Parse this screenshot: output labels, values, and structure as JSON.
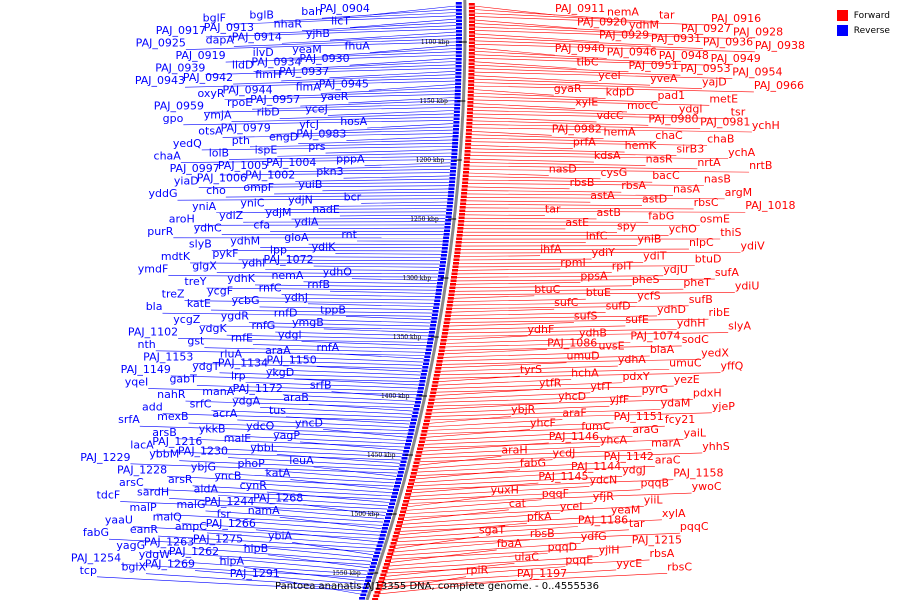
{
  "caption": "Pantoea ananatis AJ13355 DNA, complete genome. - 0..4555536",
  "legend": [
    {
      "label": "Forward",
      "color": "#ff0000"
    },
    {
      "label": "Reverse",
      "color": "#0000ff"
    }
  ],
  "scale_ticks": [
    "1100 kbp",
    "1150 kbp",
    "1200 kbp",
    "1250 kbp",
    "1300 kbp",
    "1350 kbp",
    "1400 kbp",
    "1450 kbp",
    "1500 kbp",
    "1550 kbp"
  ],
  "reverse_genes": [
    "PAJ_0904",
    "bah",
    "bglB",
    "bglF",
    "licT",
    "nhaR",
    "PAJ_0913",
    "PAJ_0917",
    "yjhB",
    "PAJ_0914",
    "dapA",
    "PAJ_0925",
    "fhuA",
    "yeaM",
    "ilvD",
    "PAJ_0919",
    "PAJ_0930",
    "PAJ_0934",
    "lldD",
    "PAJ_0939",
    "PAJ_0937",
    "fimH",
    "PAJ_0942",
    "PAJ_0943",
    "PAJ_0945",
    "fimA",
    "PAJ_0944",
    "oxyR",
    "yaeR",
    "PAJ_0957",
    "rpoE",
    "PAJ_0959",
    "yceJ",
    "ribD",
    "ymjA",
    "gpo",
    "hosA",
    "yfcJ",
    "PAJ_0979",
    "otsA",
    "PAJ_0983",
    "engD",
    "pth",
    "yedQ",
    "prs",
    "ispE",
    "lolB",
    "chaA",
    "pppA",
    "PAJ_1004",
    "PAJ_1005",
    "PAJ_0997",
    "pkn3",
    "PAJ_1002",
    "PAJ_1006",
    "yiaD",
    "yuiB",
    "ompF",
    "cho",
    "yddG",
    "bcr",
    "ydjN",
    "yniC",
    "yniA",
    "nadE",
    "ydjM",
    "ydiZ",
    "aroH",
    "ydiA",
    "cfa",
    "ydhC",
    "purR",
    "rnt",
    "gloA",
    "ydhM",
    "slyB",
    "ydiK",
    "lpp",
    "pykF",
    "mdtK",
    "PAJ_1072",
    "ydhl",
    "glgX",
    "ymdF",
    "ydhO",
    "nemA",
    "ydhK",
    "treY",
    "rnfB",
    "rnfC",
    "ycgF",
    "treZ",
    "ydhJ",
    "ycbG",
    "katE",
    "bla",
    "tppB",
    "rnfD",
    "ygdR",
    "ycgZ",
    "ymgB",
    "rnfG",
    "ydgK",
    "PAJ_1102",
    "ydgl",
    "rnfE",
    "gst",
    "nth",
    "rnfA",
    "araA",
    "rluA",
    "PAJ_1153",
    "PAJ_1150",
    "PAJ_1134",
    "ydgT",
    "PAJ_1149",
    "ykgD",
    "lrp",
    "gabT",
    "yqeI",
    "srfB",
    "PAJ_1172",
    "manA",
    "nahR",
    "araB",
    "ydgA",
    "srfC",
    "add",
    "tus",
    "acrA",
    "mexB",
    "srfA",
    "yncD",
    "ydcO",
    "ykkB",
    "arsB",
    "yagP",
    "malE",
    "PAJ_1216",
    "lacA",
    "ybbL",
    "PAJ_1230",
    "ybbM",
    "PAJ_1229",
    "leuA",
    "phoP",
    "ybjG",
    "PAJ_1228",
    "katA",
    "yncB",
    "arsR",
    "arsC",
    "cynR",
    "aldA",
    "sardH",
    "tdcF",
    "PAJ_1268",
    "PAJ_1244",
    "malG",
    "malP",
    "namA",
    "fsr",
    "malQ",
    "yaaU",
    "PAJ_1266",
    "ampC",
    "eanR",
    "fabG",
    "ybiA",
    "PAJ_1275",
    "PAJ_1263",
    "yagG",
    "hipB",
    "PAJ_1262",
    "ydgW",
    "PAJ_1254",
    "hipA",
    "PAJ_1269",
    "bglX",
    "tcp",
    "PAJ_1291"
  ],
  "forward_genes": [
    "PAJ_0911",
    "nemA",
    "tar",
    "PAJ_0916",
    "PAJ_0920",
    "ydhM",
    "PAJ_0927",
    "PAJ_0928",
    "PAJ_0929",
    "PAJ_0931",
    "PAJ_0936",
    "PAJ_0938",
    "PAJ_0940",
    "PAJ_0946",
    "PAJ_0948",
    "PAJ_0949",
    "tibC",
    "PAJ_0951",
    "PAJ_0953",
    "PAJ_0954",
    "yceI",
    "yveA",
    "yajD",
    "PAJ_0966",
    "gyaR",
    "kdpD",
    "pad1",
    "metE",
    "xylE",
    "mocC",
    "ydgl",
    "tsr",
    "vdcC",
    "PAJ_0980",
    "PAJ_0981",
    "ychH",
    "PAJ_0982",
    "hemA",
    "chaC",
    "chaB",
    "prfA",
    "hemK",
    "sirB3",
    "ychA",
    "kdsA",
    "nasR",
    "nrtA",
    "nrtB",
    "nasD",
    "cysG",
    "bacC",
    "nasB",
    "rbsB",
    "rbsA",
    "nasA",
    "argM",
    "astA",
    "astD",
    "rbsC",
    "PAJ_1018",
    "tar",
    "astB",
    "fabG",
    "osmE",
    "astE",
    "spy",
    "ychO",
    "thiS",
    "lnfC",
    "yniB",
    "nlpC",
    "ydiV",
    "ihfA",
    "ydiY",
    "ydiT",
    "btuD",
    "rpmI",
    "rplT",
    "ydjU",
    "sufA",
    "ppsA",
    "pheS",
    "pheT",
    "ydiU",
    "btuC",
    "btuE",
    "ycfS",
    "sufB",
    "sufC",
    "sufD",
    "ydhD",
    "ribE",
    "sufS",
    "sufE",
    "ydhH",
    "slyA",
    "ydhF",
    "ydhB",
    "PAJ_1074",
    "sodC",
    "PAJ_1086",
    "uvsE",
    "blaA",
    "yedX",
    "umuD",
    "ydhA",
    "umuC",
    "yffQ",
    "tyrS",
    "hchA",
    "pdxY",
    "yezE",
    "ytfR",
    "ytfT",
    "pyrG",
    "pdxH",
    "yhcD",
    "yjfF",
    "ydaM",
    "yjeP",
    "ybjR",
    "araF",
    "PAJ_1151",
    "fcy21",
    "yhcF",
    "fumC",
    "araG",
    "yaiL",
    "PAJ_1146",
    "yhcA",
    "marA",
    "yhhS",
    "araH",
    "ycdJ",
    "PAJ_1142",
    "araC",
    "fabG",
    "PAJ_1144",
    "ydgJ",
    "PAJ_1158",
    "PAJ_1145",
    "ydcN",
    "pqqB",
    "ywoC",
    "yuxH",
    "pqqF",
    "yfjR",
    "yiiL",
    "cat",
    "yceI",
    "yeaM",
    "xylA",
    "pfkA",
    "PAJ_1186",
    "tar",
    "pqqC",
    "sgaT",
    "rbsB",
    "ydfG",
    "PAJ_1215",
    "fbaA",
    "pqqD",
    "yjiH",
    "rbsA",
    "ulaC",
    "pqqE",
    "yycE",
    "rbsC",
    "rpiR",
    "PAJ_1197"
  ]
}
